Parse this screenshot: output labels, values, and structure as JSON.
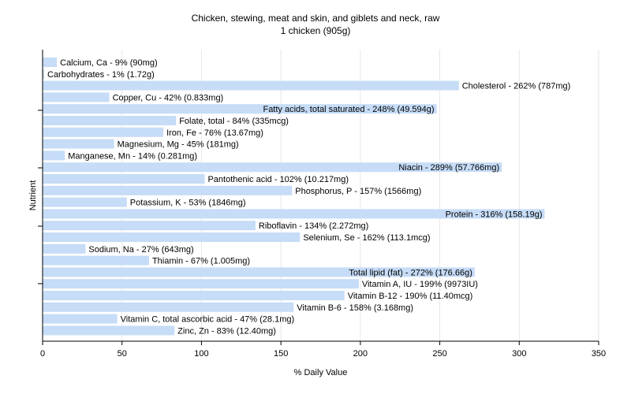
{
  "chart_data": {
    "type": "bar",
    "orientation": "horizontal",
    "title": "Chicken, stewing, meat and skin, and giblets and neck, raw",
    "subtitle": "1 chicken (905g)",
    "xlabel": "% Daily Value",
    "ylabel": "Nutrient",
    "xlim": [
      0,
      350
    ],
    "xticks": [
      0,
      50,
      100,
      150,
      200,
      250,
      300,
      350
    ],
    "grid": true,
    "bar_color": "#c6dcf7",
    "categories": [
      "Calcium, Ca",
      "Carbohydrates",
      "Cholesterol",
      "Copper, Cu",
      "Fatty acids, total saturated",
      "Folate, total",
      "Iron, Fe",
      "Magnesium, Mg",
      "Manganese, Mn",
      "Niacin",
      "Pantothenic acid",
      "Phosphorus, P",
      "Potassium, K",
      "Protein",
      "Riboflavin",
      "Selenium, Se",
      "Sodium, Na",
      "Thiamin",
      "Total lipid (fat)",
      "Vitamin A, IU",
      "Vitamin B-12",
      "Vitamin B-6",
      "Vitamin C, total ascorbic acid",
      "Zinc, Zn"
    ],
    "values": [
      9,
      1,
      262,
      42,
      248,
      84,
      76,
      45,
      14,
      289,
      102,
      157,
      53,
      316,
      134,
      162,
      27,
      67,
      272,
      199,
      190,
      158,
      47,
      83
    ],
    "labels": [
      "Calcium, Ca - 9% (90mg)",
      "Carbohydrates - 1% (1.72g)",
      "Cholesterol - 262% (787mg)",
      "Copper, Cu - 42% (0.833mg)",
      "Fatty acids, total saturated - 248% (49.594g)",
      "Folate, total - 84% (335mcg)",
      "Iron, Fe - 76% (13.67mg)",
      "Magnesium, Mg - 45% (181mg)",
      "Manganese, Mn - 14% (0.281mg)",
      "Niacin - 289% (57.766mg)",
      "Pantothenic acid - 102% (10.217mg)",
      "Phosphorus, P - 157% (1566mg)",
      "Potassium, K - 53% (1846mg)",
      "Protein - 316% (158.19g)",
      "Riboflavin - 134% (2.272mg)",
      "Selenium, Se - 162% (113.1mcg)",
      "Sodium, Na - 27% (643mg)",
      "Thiamin - 67% (1.005mg)",
      "Total lipid (fat) - 272% (176.66g)",
      "Vitamin A, IU - 199% (9973IU)",
      "Vitamin B-12 - 190% (11.40mcg)",
      "Vitamin B-6 - 158% (3.168mg)",
      "Vitamin C, total ascorbic acid - 47% (28.1mg)",
      "Zinc, Zn - 83% (12.40mg)"
    ],
    "label_inside": [
      false,
      false,
      false,
      false,
      true,
      false,
      false,
      false,
      false,
      true,
      false,
      false,
      false,
      true,
      false,
      false,
      false,
      false,
      true,
      false,
      false,
      false,
      false,
      false
    ]
  }
}
